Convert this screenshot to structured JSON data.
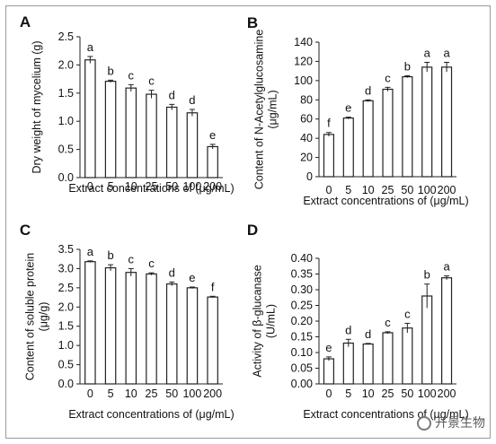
{
  "watermark": "开景生物",
  "chart_data": [
    {
      "panel": "A",
      "type": "bar",
      "categories": [
        "0",
        "5",
        "10",
        "25",
        "50",
        "100",
        "200"
      ],
      "values": [
        2.09,
        1.71,
        1.59,
        1.48,
        1.25,
        1.15,
        0.55
      ],
      "errors": [
        0.06,
        0.02,
        0.06,
        0.07,
        0.05,
        0.06,
        0.04
      ],
      "letters": [
        "a",
        "b",
        "c",
        "c",
        "d",
        "d",
        "e"
      ],
      "xlabel": "Extract concentrations of (μg/mL)",
      "ylabel_lines": [
        "Dry weight of mycelium (g)"
      ],
      "ylim": [
        0,
        2.5
      ],
      "yticks": [
        "0.0",
        "0.5",
        "1.0",
        "1.5",
        "2.0",
        "2.5"
      ],
      "grid": false
    },
    {
      "panel": "B",
      "type": "bar",
      "categories": [
        "0",
        "5",
        "10",
        "25",
        "50",
        "100",
        "200"
      ],
      "values": [
        44,
        61,
        79,
        91,
        104,
        114,
        114
      ],
      "errors": [
        2,
        1,
        1,
        2,
        1,
        5,
        5
      ],
      "letters": [
        "f",
        "e",
        "d",
        "c",
        "b",
        "a",
        "a"
      ],
      "xlabel": "Extract concentrations of (μg/mL)",
      "ylabel_lines": [
        "Content of N-Acetylglucosamine",
        "(μg/mL)"
      ],
      "ylim": [
        0,
        140
      ],
      "yticks": [
        "0",
        "20",
        "40",
        "60",
        "80",
        "100",
        "120",
        "140"
      ],
      "grid": false
    },
    {
      "panel": "C",
      "type": "bar",
      "categories": [
        "0",
        "5",
        "10",
        "25",
        "50",
        "100",
        "200"
      ],
      "values": [
        3.18,
        3.02,
        2.9,
        2.86,
        2.6,
        2.5,
        2.26
      ],
      "errors": [
        0.02,
        0.08,
        0.1,
        0.03,
        0.05,
        0.02,
        0.02
      ],
      "letters": [
        "a",
        "b",
        "c",
        "c",
        "d",
        "e",
        "f"
      ],
      "xlabel": "Extract concentrations of (μg/mL)",
      "ylabel_lines": [
        "Content of soluble protein",
        "(μg/g)"
      ],
      "ylim": [
        0,
        3.5
      ],
      "yticks": [
        "0.0",
        "0.5",
        "1.0",
        "1.5",
        "2.0",
        "2.5",
        "3.0",
        "3.5"
      ],
      "grid": false
    },
    {
      "panel": "D",
      "type": "bar",
      "categories": [
        "0",
        "5",
        "10",
        "25",
        "50",
        "100",
        "200"
      ],
      "values": [
        0.08,
        0.13,
        0.127,
        0.163,
        0.178,
        0.28,
        0.338
      ],
      "errors": [
        0.006,
        0.012,
        0.002,
        0.003,
        0.015,
        0.038,
        0.006
      ],
      "letters": [
        "e",
        "d",
        "d",
        "c",
        "c",
        "b",
        "a"
      ],
      "xlabel": "Extract concentrations of (μg/mL)",
      "ylabel_lines": [
        "Activity of  β-glucanase",
        "(U/mL)"
      ],
      "ylim": [
        0,
        0.4
      ],
      "yticks": [
        "0.00",
        "0.05",
        "0.10",
        "0.15",
        "0.20",
        "0.25",
        "0.30",
        "0.35",
        "0.40"
      ],
      "grid": false
    }
  ]
}
